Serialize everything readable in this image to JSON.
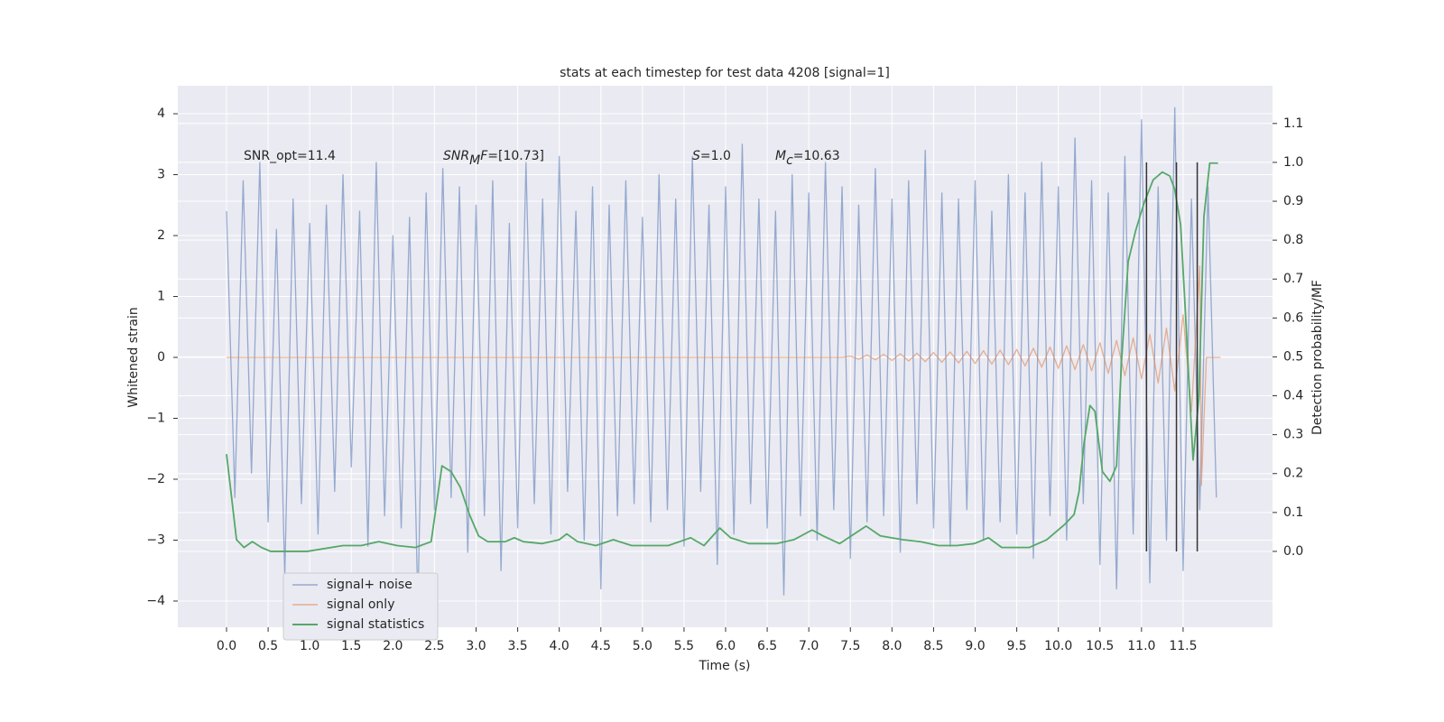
{
  "chart_data": {
    "type": "line",
    "title": "stats at each timestep for test data 4208 [signal=1]",
    "x_label": "Time (s)",
    "y_label": "Whitened strain",
    "y2_label": "Detection probability/MF",
    "xlim": [
      -0.586,
      12.575
    ],
    "ylim": [
      -4.43,
      4.46
    ],
    "y2lim": [
      -0.195,
      1.197
    ],
    "xticks": [
      {
        "value": 0,
        "label": "0.0"
      },
      0.5,
      {
        "value": 1,
        "label": "1.0"
      },
      1.5,
      {
        "value": 2,
        "label": "2.0"
      },
      2.5,
      {
        "value": 3,
        "label": "3.0"
      },
      3.5,
      {
        "value": 4,
        "label": "4.0"
      },
      4.5,
      {
        "value": 5,
        "label": "5.0"
      },
      5.5,
      {
        "value": 6,
        "label": "6.0"
      },
      6.5,
      {
        "value": 7,
        "label": "7.0"
      },
      7.5,
      {
        "value": 8,
        "label": "8.0"
      },
      8.5,
      {
        "value": 9,
        "label": "9.0"
      },
      9.5,
      {
        "value": 10,
        "label": "10.0"
      },
      10.5,
      {
        "value": 11,
        "label": "11.0"
      },
      11.5
    ],
    "yticks": [
      {
        "value": -4,
        "label": "−4"
      },
      {
        "value": -3,
        "label": "−3"
      },
      {
        "value": -2,
        "label": "−2"
      },
      {
        "value": -1,
        "label": "−1"
      },
      0,
      1,
      2,
      3,
      4
    ],
    "y2ticks": [
      {
        "value": 0,
        "label": "0.0"
      },
      0.1,
      0.2,
      0.3,
      0.4,
      0.5,
      0.6,
      0.7,
      0.8,
      0.9,
      {
        "value": 1,
        "label": "1.0"
      },
      1.1
    ],
    "grid": true,
    "legend": "lower left",
    "series": [
      {
        "name": "signal+ noise",
        "color": "#4c72b0",
        "x": [
          0,
          0.1,
          0.2,
          0.3,
          0.4,
          0.5,
          0.6,
          0.7,
          0.8,
          0.9,
          1,
          1.1,
          1.2,
          1.3,
          1.4,
          1.5,
          1.6,
          1.7,
          1.8,
          1.9,
          2,
          2.1,
          2.2,
          2.3,
          2.4,
          2.5,
          2.6,
          2.7,
          2.8,
          2.9,
          3,
          3.1,
          3.2,
          3.3,
          3.4,
          3.5,
          3.6,
          3.7,
          3.8,
          3.9,
          4,
          4.1,
          4.2,
          4.3,
          4.4,
          4.5,
          4.6,
          4.7,
          4.8,
          4.9,
          5,
          5.1,
          5.2,
          5.3,
          5.4,
          5.5,
          5.6,
          5.7,
          5.8,
          5.9,
          6,
          6.1,
          6.2,
          6.3,
          6.4,
          6.5,
          6.6,
          6.7,
          6.8,
          6.9,
          7,
          7.1,
          7.2,
          7.3,
          7.4,
          7.5,
          7.6,
          7.7,
          7.8,
          7.9,
          8,
          8.1,
          8.2,
          8.3,
          8.4,
          8.5,
          8.6,
          8.7,
          8.8,
          8.9,
          9,
          9.1,
          9.2,
          9.3,
          9.4,
          9.5,
          9.6,
          9.7,
          9.8,
          9.9,
          10,
          10.1,
          10.2,
          10.3,
          10.4,
          10.5,
          10.6,
          10.7,
          10.8,
          10.9,
          11,
          11.1,
          11.2,
          11.3,
          11.4,
          11.5,
          11.6,
          11.7,
          11.8,
          11.9
        ],
        "values": [
          2.4,
          -2.3,
          2.9,
          -1.9,
          3.2,
          -2.7,
          2.1,
          -3.6,
          2.6,
          -2.4,
          2.2,
          -2.9,
          2.5,
          -2.2,
          3.0,
          -1.8,
          2.4,
          -3.1,
          3.2,
          -2.6,
          2.0,
          -2.8,
          2.3,
          -4.1,
          2.7,
          -2.5,
          3.1,
          -2.3,
          2.8,
          -3.2,
          2.5,
          -2.6,
          2.9,
          -3.5,
          2.2,
          -2.8,
          3.2,
          -2.4,
          2.6,
          -2.9,
          3.3,
          -2.2,
          2.4,
          -3.0,
          2.8,
          -3.8,
          2.5,
          -2.6,
          2.9,
          -2.4,
          2.3,
          -2.7,
          3.0,
          -2.5,
          2.6,
          -3.1,
          3.3,
          -2.2,
          2.5,
          -3.4,
          2.8,
          -2.9,
          3.5,
          -2.4,
          2.6,
          -2.8,
          2.4,
          -3.9,
          3.0,
          -2.6,
          2.7,
          -3.0,
          3.2,
          -2.5,
          2.8,
          -3.3,
          2.5,
          -2.7,
          3.1,
          -2.6,
          2.6,
          -3.2,
          2.9,
          -2.4,
          3.4,
          -2.8,
          2.7,
          -3.1,
          2.6,
          -2.5,
          2.9,
          -3.0,
          2.4,
          -2.7,
          3.0,
          -2.9,
          2.7,
          -3.3,
          3.2,
          -2.6,
          2.8,
          -3.0,
          3.6,
          -2.4,
          2.9,
          -3.4,
          2.7,
          -3.8,
          3.3,
          -2.9,
          3.9,
          -3.7,
          2.8,
          -3.0,
          4.1,
          -3.5,
          2.6,
          -2.5,
          2.8,
          -2.3
        ]
      },
      {
        "name": "signal only",
        "color": "#dd8452",
        "x": [
          0,
          7.4,
          7.5,
          7.6,
          7.7,
          7.8,
          7.9,
          8,
          8.1,
          8.2,
          8.3,
          8.4,
          8.5,
          8.6,
          8.7,
          8.8,
          8.9,
          9,
          9.1,
          9.2,
          9.3,
          9.4,
          9.5,
          9.6,
          9.7,
          9.8,
          9.9,
          10,
          10.1,
          10.2,
          10.3,
          10.4,
          10.5,
          10.6,
          10.7,
          10.8,
          10.9,
          11,
          11.1,
          11.2,
          11.3,
          11.4,
          11.5,
          11.6,
          11.7,
          11.72,
          11.78,
          11.95
        ],
        "values": [
          0,
          0,
          0.02,
          -0.03,
          0.04,
          -0.04,
          0.05,
          -0.05,
          0.06,
          -0.06,
          0.07,
          -0.07,
          0.08,
          -0.08,
          0.09,
          -0.09,
          0.1,
          -0.1,
          0.11,
          -0.11,
          0.12,
          -0.12,
          0.13,
          -0.14,
          0.15,
          -0.16,
          0.17,
          -0.18,
          0.19,
          -0.2,
          0.21,
          -0.22,
          0.24,
          -0.26,
          0.28,
          -0.3,
          0.32,
          -0.35,
          0.38,
          -0.42,
          0.48,
          -0.55,
          0.7,
          -0.9,
          1.5,
          -2.1,
          0,
          0
        ]
      },
      {
        "name": "signal statistics",
        "color": "#55a868",
        "axis": "y2",
        "x": [
          0,
          0.12,
          0.21,
          0.31,
          0.42,
          0.53,
          0.97,
          1.4,
          1.62,
          1.83,
          2.05,
          2.27,
          2.46,
          2.59,
          2.7,
          2.81,
          2.92,
          3.03,
          3.14,
          3.35,
          3.46,
          3.57,
          3.79,
          4,
          4.09,
          4.22,
          4.44,
          4.65,
          4.87,
          5.31,
          5.58,
          5.74,
          5.93,
          6.06,
          6.28,
          6.61,
          6.82,
          7.04,
          7.17,
          7.37,
          7.69,
          7.86,
          8.13,
          8.34,
          8.56,
          8.78,
          8.99,
          9.16,
          9.32,
          9.65,
          9.86,
          10.08,
          10.19,
          10.25,
          10.31,
          10.38,
          10.44,
          10.53,
          10.62,
          10.7,
          10.76,
          10.84,
          10.93,
          11.03,
          11.14,
          11.25,
          11.34,
          11.4,
          11.47,
          11.53,
          11.58,
          11.62,
          11.69,
          11.75,
          11.82,
          11.92
        ],
        "values": [
          0.25,
          0.03,
          0.01,
          0.025,
          0.01,
          0,
          0,
          0.015,
          0.015,
          0.025,
          0.015,
          0.01,
          0.025,
          0.22,
          0.205,
          0.165,
          0.095,
          0.04,
          0.025,
          0.025,
          0.035,
          0.025,
          0.02,
          0.03,
          0.045,
          0.025,
          0.015,
          0.03,
          0.015,
          0.015,
          0.035,
          0.015,
          0.06,
          0.035,
          0.02,
          0.02,
          0.03,
          0.055,
          0.04,
          0.02,
          0.065,
          0.04,
          0.03,
          0.025,
          0.015,
          0.015,
          0.02,
          0.035,
          0.01,
          0.01,
          0.03,
          0.07,
          0.095,
          0.155,
          0.28,
          0.375,
          0.36,
          0.205,
          0.18,
          0.22,
          0.49,
          0.745,
          0.825,
          0.895,
          0.955,
          0.975,
          0.965,
          0.93,
          0.84,
          0.605,
          0.395,
          0.235,
          0.395,
          0.86,
          0.998,
          0.998
        ]
      }
    ],
    "vlines": {
      "x": [
        11.06,
        11.42,
        11.67
      ],
      "ymin": 0,
      "ymax": 1.0,
      "color": "#333333"
    },
    "annotations": [
      [
        {
          "text": "SNR_opt=11.4"
        }
      ],
      [
        {
          "text": "SNR",
          "style": "italic"
        },
        {
          "text": "M",
          "style": "sub"
        },
        {
          "text": "F",
          "style": "italic"
        },
        {
          "text": "=[10.73]"
        }
      ],
      [
        {
          "text": "S",
          "style": "italic"
        },
        {
          "text": "=1.0"
        }
      ],
      [
        {
          "text": "M",
          "style": "italic"
        },
        {
          "text": "c",
          "style": "sub"
        },
        {
          "text": "=10.63"
        }
      ]
    ]
  }
}
